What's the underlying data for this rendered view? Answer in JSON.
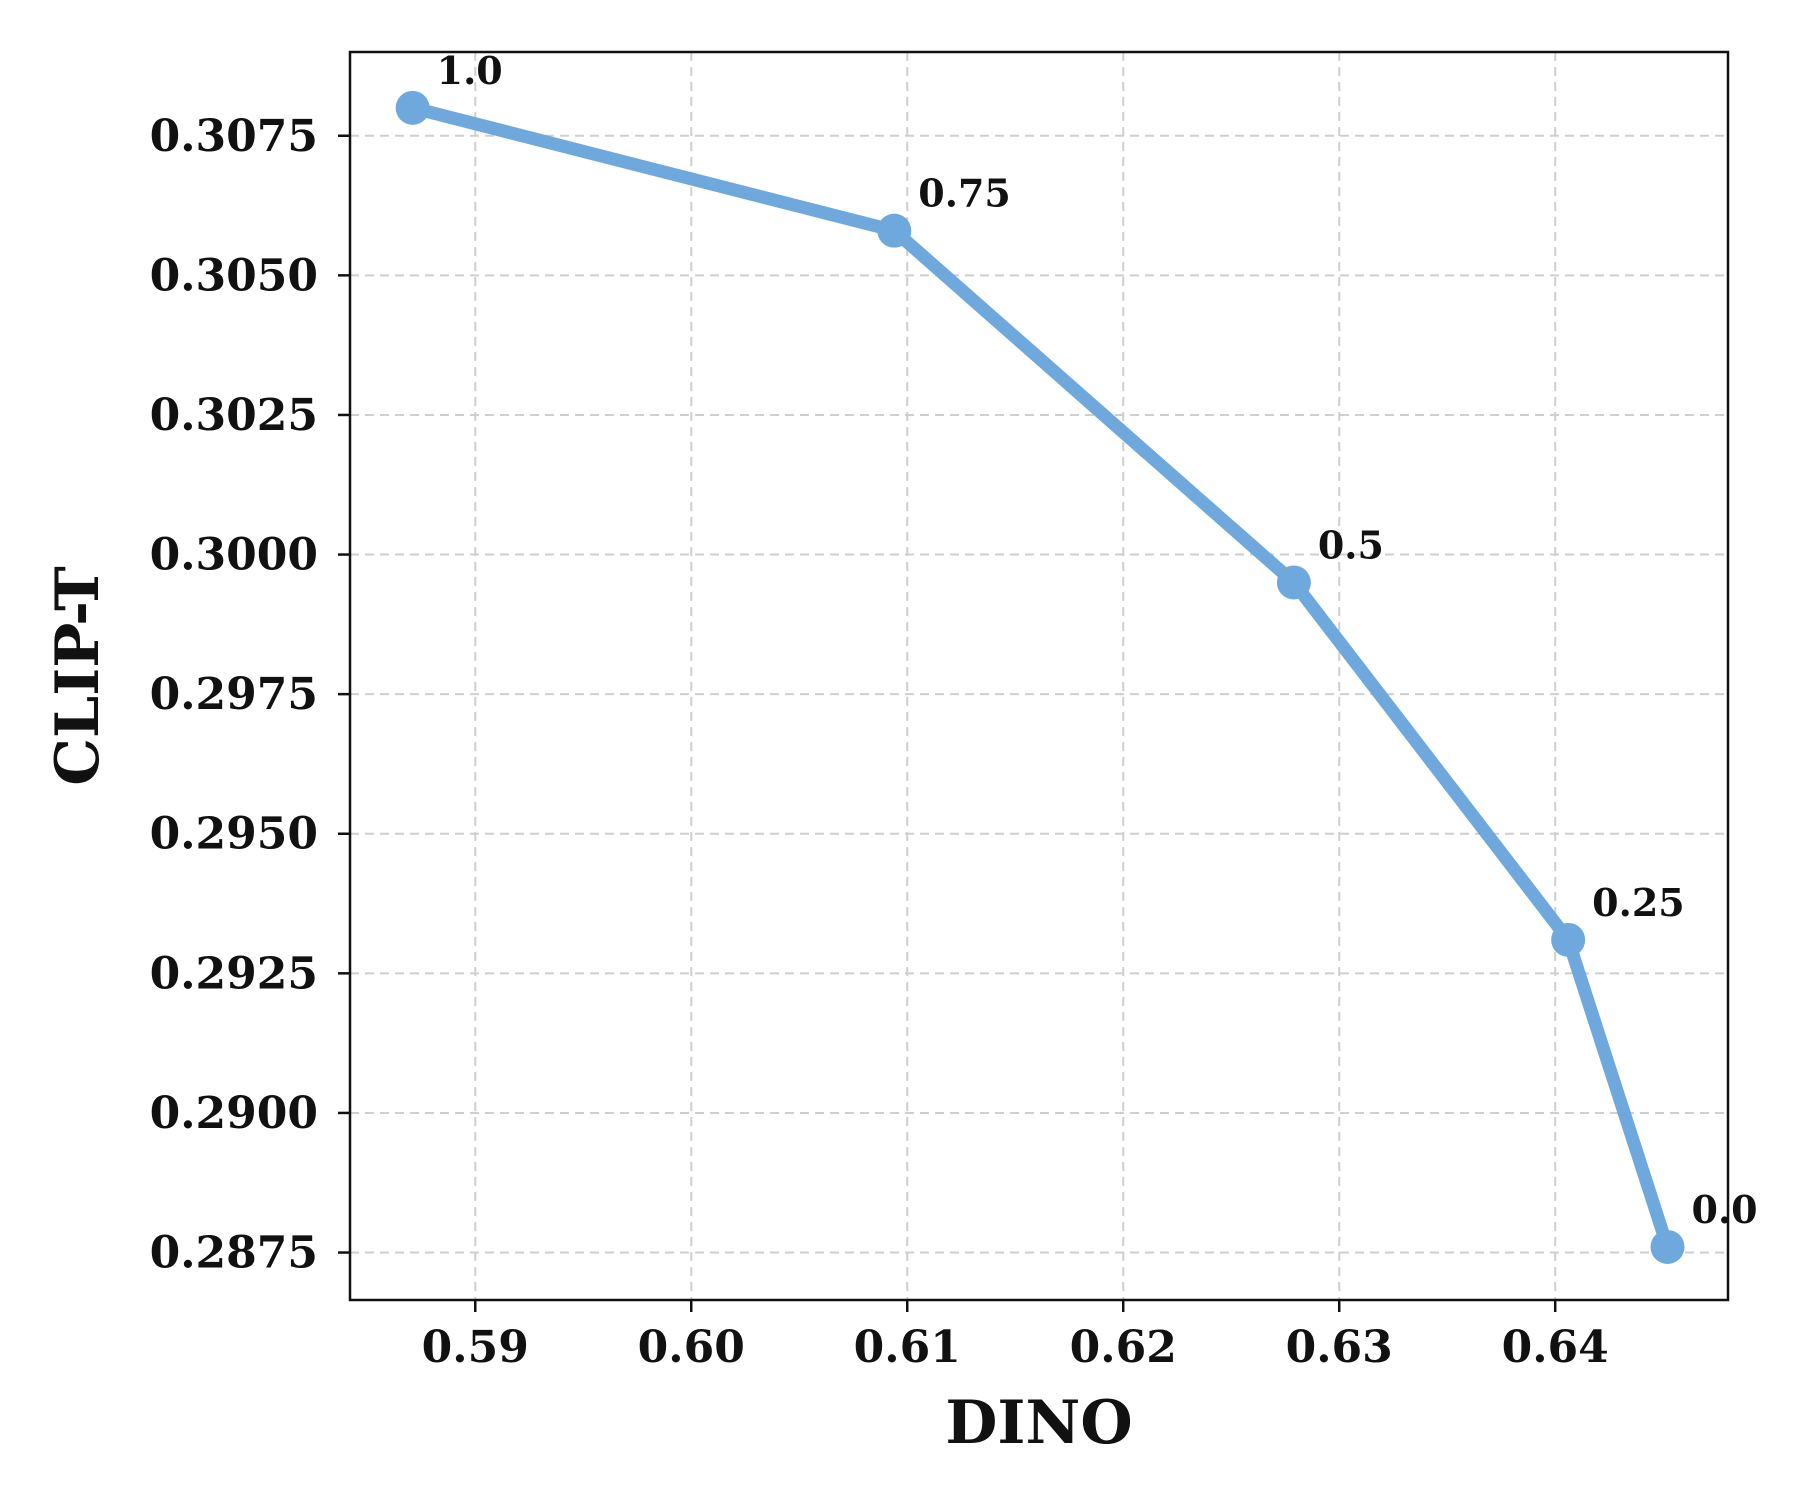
{
  "chart_data": {
    "type": "line",
    "title": "",
    "xlabel": "DINO",
    "ylabel": "CLIP-T",
    "xlim": [
      0.5842,
      0.648
    ],
    "ylim": [
      0.28665,
      0.309
    ],
    "xticks": [
      0.59,
      0.6,
      0.61,
      0.62,
      0.63,
      0.64
    ],
    "xtick_labels": [
      "0.59",
      "0.60",
      "0.61",
      "0.62",
      "0.63",
      "0.64"
    ],
    "yticks": [
      0.2875,
      0.29,
      0.2925,
      0.295,
      0.2975,
      0.3,
      0.3025,
      0.305,
      0.3075
    ],
    "ytick_labels": [
      "0.2875",
      "0.2900",
      "0.2925",
      "0.2950",
      "0.2975",
      "0.3000",
      "0.3025",
      "0.3050",
      "0.3075"
    ],
    "grid": true,
    "series": [
      {
        "color": "#6fa8dc",
        "points": [
          {
            "x": 0.5871,
            "y": 0.308,
            "label": "1.0"
          },
          {
            "x": 0.6094,
            "y": 0.3058,
            "label": "0.75"
          },
          {
            "x": 0.6279,
            "y": 0.2995,
            "label": "0.5"
          },
          {
            "x": 0.6406,
            "y": 0.2931,
            "label": "0.25"
          },
          {
            "x": 0.6452,
            "y": 0.2876,
            "label": "0.0"
          }
        ]
      }
    ]
  }
}
